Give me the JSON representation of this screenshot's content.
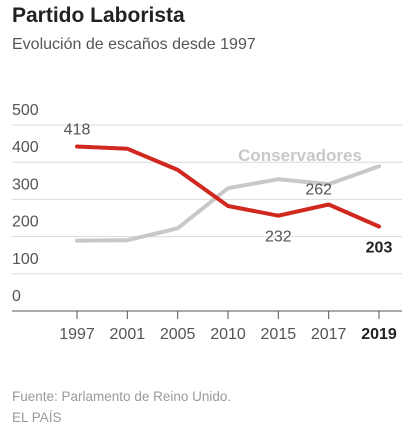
{
  "title": "Partido Laborista",
  "subtitle": "Evolución de escaños desde 1997",
  "source": "Fuente: Parlamento de Reino Unido.",
  "brand": "EL PAÍS",
  "colors": {
    "labour": "#d0281e",
    "conservative": "#c8c8c8",
    "axis": "#555555",
    "grid": "#d9d9d9",
    "text": "#555555",
    "label": "#8a8a8a"
  },
  "chart_data": {
    "type": "line",
    "title": "Partido Laborista",
    "subtitle": "Evolución de escaños desde 1997",
    "categories": [
      "1997",
      "2001",
      "2005",
      "2010",
      "2015",
      "2017",
      "2019"
    ],
    "highlight_category": "2019",
    "y_ticks": [
      0,
      100,
      200,
      300,
      400,
      500
    ],
    "ylim": [
      0,
      500
    ],
    "grid": true,
    "series": [
      {
        "name": "Conservadores",
        "values": [
          165,
          166,
          198,
          306,
          330,
          317,
          365
        ]
      },
      {
        "name": "",
        "values": [
          418,
          412,
          355,
          258,
          232,
          262,
          203
        ]
      }
    ],
    "annotations": [
      {
        "series": 1,
        "index": 0,
        "text": "418",
        "position": "above"
      },
      {
        "series": 1,
        "index": 4,
        "text": "232",
        "position": "below"
      },
      {
        "series": 1,
        "index": 5,
        "text": "262",
        "position": "left"
      },
      {
        "series": 1,
        "index": 6,
        "text": "203",
        "position": "below",
        "bold": true
      },
      {
        "series": 0,
        "index": 5,
        "text": "Conservadores",
        "position": "above"
      }
    ]
  }
}
